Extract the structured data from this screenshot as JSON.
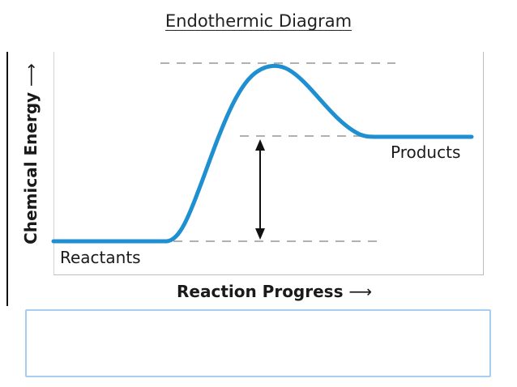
{
  "title": "Endothermic Diagram",
  "diagram": {
    "y_axis_label": "Chemical Energy",
    "y_axis_arrow": "⟶",
    "x_axis_label": "Reaction Progress",
    "x_axis_arrow": "⟶",
    "reactants_label": "Reactants",
    "products_label": "Products",
    "curve_color": "#1e8fd0",
    "guide_line_color": "#b0b0b0",
    "energy_arrow_color": "#111111"
  },
  "answer_box": {
    "value": "",
    "border_color": "#a8cdf0"
  }
}
